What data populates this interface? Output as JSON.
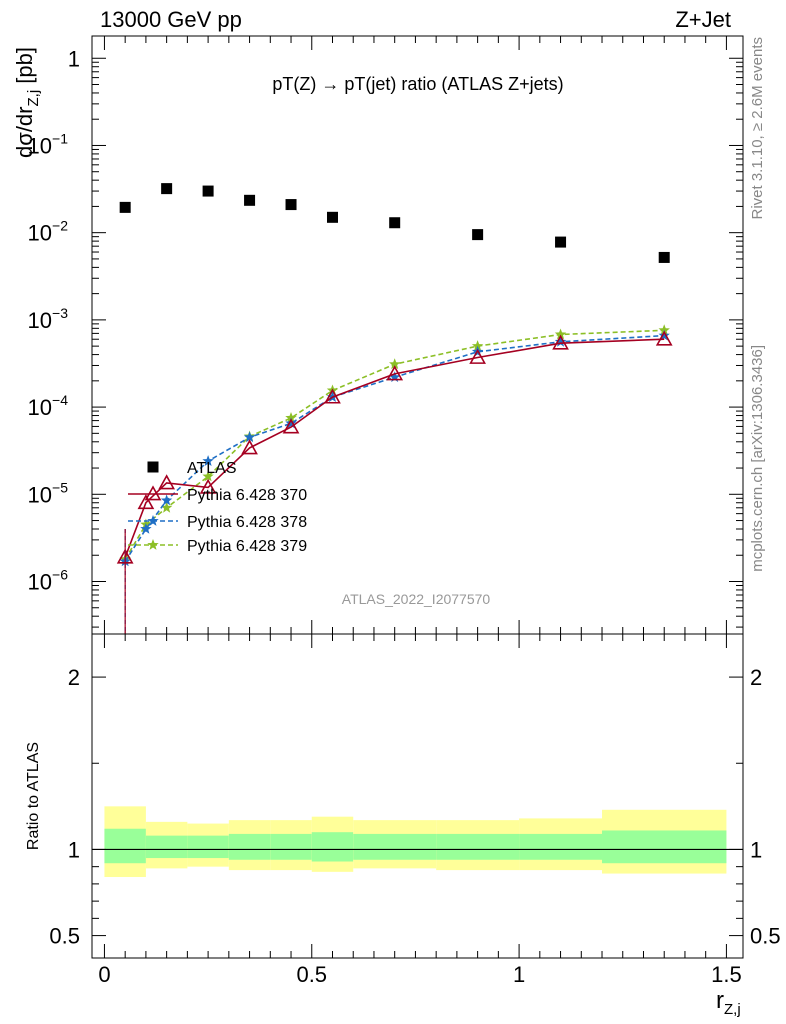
{
  "header": {
    "left": "13000 GeV pp",
    "right": "Z+Jet"
  },
  "side_labels": {
    "rivet": "Rivet 3.1.10, ≥ 2.6M events",
    "mcplots": "mcplots.cern.ch [arXiv:1306.3436]"
  },
  "chart_data": [
    {
      "type": "scatter",
      "title": "pT(Z) → pT(jet) ratio (ATLAS Z+jets)",
      "ylabel": "dσ/dr",
      "ylabel_sub": "Z,j",
      "ylabel_unit": "[pb]",
      "yscale": "log",
      "ylim": [
        2.5e-07,
        1.8
      ],
      "xlim": [
        -0.03,
        1.54
      ],
      "y_ticks": [
        {
          "value": 1e-06,
          "label": "10",
          "exp": "−6"
        },
        {
          "value": 1e-05,
          "label": "10",
          "exp": "−5"
        },
        {
          "value": 0.0001,
          "label": "10",
          "exp": "−4"
        },
        {
          "value": 0.001,
          "label": "10",
          "exp": "−3"
        },
        {
          "value": 0.01,
          "label": "10",
          "exp": "−2"
        },
        {
          "value": 0.1,
          "label": "10",
          "exp": "−1"
        },
        {
          "value": 1,
          "label": "1",
          "exp": ""
        }
      ],
      "watermark": "ATLAS_2022_I2077570",
      "legend_position": "lower-left",
      "series": [
        {
          "name": "ATLAS",
          "color": "#000000",
          "marker": "square",
          "x": [
            0.05,
            0.15,
            0.25,
            0.35,
            0.45,
            0.55,
            0.7,
            0.9,
            1.1,
            1.35
          ],
          "y": [
            0.0195,
            0.032,
            0.03,
            0.0235,
            0.021,
            0.015,
            0.013,
            0.0095,
            0.0078,
            0.0052
          ]
        },
        {
          "name": "Pythia 6.428 370",
          "color": "#a50021",
          "marker": "triangle",
          "line": "solid",
          "x": [
            0.05,
            0.1,
            0.15,
            0.25,
            0.35,
            0.45,
            0.55,
            0.7,
            0.9,
            1.1,
            1.35
          ],
          "y": [
            1.9e-06,
            8e-06,
            1.35e-05,
            1.2e-05,
            3.4e-05,
            5.9e-05,
            0.00013,
            0.00024,
            0.00037,
            0.00054,
            0.0006
          ]
        },
        {
          "name": "Pythia 6.428 378",
          "color": "#1f6fc5",
          "marker": "star",
          "line": "dashed",
          "x": [
            0.05,
            0.1,
            0.15,
            0.25,
            0.35,
            0.45,
            0.55,
            0.7,
            0.9,
            1.1,
            1.35
          ],
          "y": [
            1.7e-06,
            4e-06,
            8.5e-06,
            2.4e-05,
            4.5e-05,
            6.5e-05,
            0.00013,
            0.00022,
            0.00043,
            0.00056,
            0.00066
          ]
        },
        {
          "name": "Pythia 6.428 379",
          "color": "#8cbf26",
          "marker": "star",
          "line": "dashed",
          "x": [
            0.05,
            0.1,
            0.15,
            0.25,
            0.35,
            0.45,
            0.55,
            0.7,
            0.9,
            1.1,
            1.35
          ],
          "y": [
            1.8e-06,
            4.5e-06,
            7e-06,
            1.6e-05,
            4.6e-05,
            7.5e-05,
            0.000155,
            0.00031,
            0.0005,
            0.00068,
            0.00076
          ]
        }
      ]
    },
    {
      "type": "area",
      "ylabel": "Ratio to ATLAS",
      "xlabel": "r",
      "xlabel_sub": "Z,j",
      "ylim": [
        0.37,
        2.25
      ],
      "xlim": [
        -0.03,
        1.54
      ],
      "y_ticks": [
        {
          "value": 0.5,
          "label": "0.5"
        },
        {
          "value": 1,
          "label": "1"
        },
        {
          "value": 2,
          "label": "2"
        }
      ],
      "x_ticks": [
        {
          "value": 0,
          "label": "0"
        },
        {
          "value": 0.5,
          "label": "0.5"
        },
        {
          "value": 1,
          "label": "1"
        },
        {
          "value": 1.5,
          "label": "1.5"
        }
      ],
      "reference_line": 1,
      "band_edges": [
        0,
        0.1,
        0.2,
        0.3,
        0.4,
        0.5,
        0.6,
        0.8,
        1.0,
        1.2,
        1.5
      ],
      "band_inner": {
        "color": "#99ff99",
        "lo": [
          0.92,
          0.95,
          0.95,
          0.94,
          0.94,
          0.93,
          0.94,
          0.94,
          0.94,
          0.92
        ],
        "hi": [
          1.12,
          1.08,
          1.08,
          1.09,
          1.09,
          1.1,
          1.09,
          1.09,
          1.09,
          1.11
        ]
      },
      "band_outer": {
        "color": "#ffff99",
        "lo": [
          0.84,
          0.89,
          0.9,
          0.88,
          0.88,
          0.87,
          0.89,
          0.88,
          0.88,
          0.86
        ],
        "hi": [
          1.25,
          1.16,
          1.15,
          1.17,
          1.17,
          1.19,
          1.17,
          1.17,
          1.18,
          1.23
        ]
      }
    }
  ]
}
